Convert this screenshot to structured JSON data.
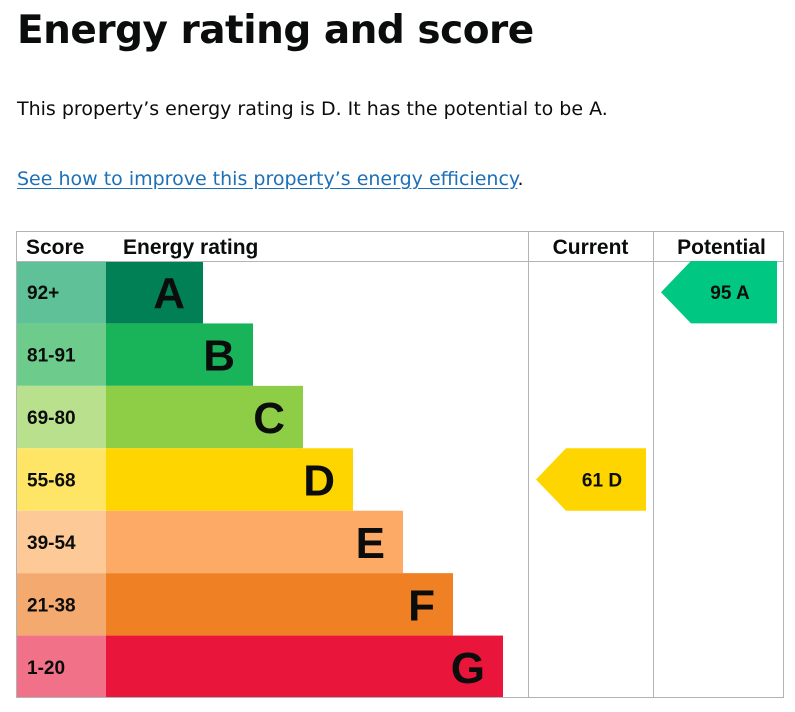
{
  "heading": "Energy rating and score",
  "summary": "This property’s energy rating is D. It has the potential to be A.",
  "improve_link": {
    "text": "See how to improve this property’s energy efficiency",
    "after": "."
  },
  "chart_data": {
    "type": "bar",
    "columns": [
      "Score",
      "Energy rating",
      "Current",
      "Potential"
    ],
    "categories": [
      "A",
      "B",
      "C",
      "D",
      "E",
      "F",
      "G"
    ],
    "bands": [
      {
        "letter": "A",
        "score": "92+",
        "band_color": "#008054",
        "score_color": "#5fc197"
      },
      {
        "letter": "B",
        "score": "81-91",
        "band_color": "#19b459",
        "score_color": "#6dcb8b"
      },
      {
        "letter": "C",
        "score": "69-80",
        "band_color": "#8dce46",
        "score_color": "#b8e08d"
      },
      {
        "letter": "D",
        "score": "55-68",
        "band_color": "#ffd500",
        "score_color": "#ffe566"
      },
      {
        "letter": "E",
        "score": "39-54",
        "band_color": "#fcaa65",
        "score_color": "#fdc996"
      },
      {
        "letter": "F",
        "score": "21-38",
        "band_color": "#ef8023",
        "score_color": "#f4aa6e"
      },
      {
        "letter": "G",
        "score": "1-20",
        "band_color": "#e9153b",
        "score_color": "#f17189"
      }
    ],
    "current": {
      "score": 61,
      "letter": "D",
      "label": "61 D",
      "color": "#ffd500"
    },
    "potential": {
      "score": 95,
      "letter": "A",
      "label": "95 A",
      "color": "#00c781"
    }
  }
}
